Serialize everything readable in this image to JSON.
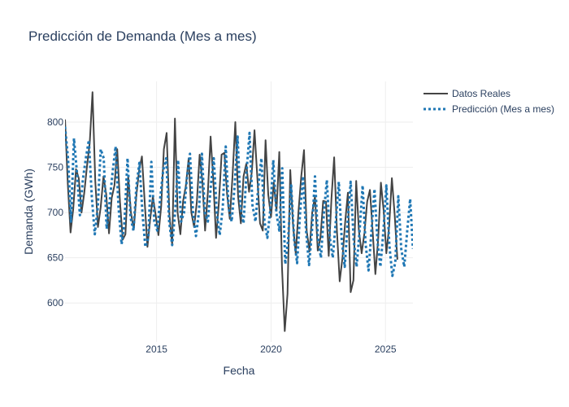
{
  "chart_data": {
    "type": "line",
    "title": "Predicción de Demanda (Mes a mes)",
    "xlabel": "Fecha",
    "ylabel": "Demanda (GWh)",
    "x_range": [
      2011.0,
      2026.2
    ],
    "ylim": [
      557,
      845
    ],
    "x_ticks": [
      {
        "value": 2015,
        "label": "2015"
      },
      {
        "value": 2020,
        "label": "2020"
      },
      {
        "value": 2025,
        "label": "2025"
      }
    ],
    "y_ticks": [
      {
        "value": 600,
        "label": "600"
      },
      {
        "value": 650,
        "label": "650"
      },
      {
        "value": 700,
        "label": "700"
      },
      {
        "value": 750,
        "label": "750"
      },
      {
        "value": 800,
        "label": "800"
      }
    ],
    "grid": true,
    "legend_position": "top-right",
    "series": [
      {
        "name": "Datos Reales",
        "color": "#444444",
        "dash": "solid",
        "points": [
          [
            2011.0,
            803
          ],
          [
            2011.12,
            732
          ],
          [
            2011.24,
            678
          ],
          [
            2011.36,
            704
          ],
          [
            2011.48,
            748
          ],
          [
            2011.6,
            738
          ],
          [
            2011.72,
            700
          ],
          [
            2011.84,
            722
          ],
          [
            2011.96,
            751
          ],
          [
            2012.08,
            777
          ],
          [
            2012.2,
            833
          ],
          [
            2012.32,
            735
          ],
          [
            2012.44,
            684
          ],
          [
            2012.56,
            706
          ],
          [
            2012.68,
            740
          ],
          [
            2012.8,
            720
          ],
          [
            2012.92,
            677
          ],
          [
            2013.04,
            716
          ],
          [
            2013.16,
            730
          ],
          [
            2013.28,
            770
          ],
          [
            2013.4,
            712
          ],
          [
            2013.52,
            670
          ],
          [
            2013.64,
            676
          ],
          [
            2013.76,
            740
          ],
          [
            2013.88,
            700
          ],
          [
            2014.0,
            681
          ],
          [
            2014.12,
            720
          ],
          [
            2014.24,
            747
          ],
          [
            2014.36,
            762
          ],
          [
            2014.48,
            712
          ],
          [
            2014.6,
            662
          ],
          [
            2014.72,
            692
          ],
          [
            2014.84,
            718
          ],
          [
            2014.96,
            697
          ],
          [
            2015.08,
            675
          ],
          [
            2015.2,
            707
          ],
          [
            2015.32,
            770
          ],
          [
            2015.44,
            788
          ],
          [
            2015.56,
            698
          ],
          [
            2015.68,
            664
          ],
          [
            2015.8,
            804
          ],
          [
            2015.92,
            700
          ],
          [
            2016.04,
            676
          ],
          [
            2016.16,
            713
          ],
          [
            2016.28,
            730
          ],
          [
            2016.4,
            760
          ],
          [
            2016.52,
            700
          ],
          [
            2016.64,
            684
          ],
          [
            2016.76,
            712
          ],
          [
            2016.88,
            764
          ],
          [
            2017.0,
            735
          ],
          [
            2017.12,
            680
          ],
          [
            2017.24,
            722
          ],
          [
            2017.36,
            784
          ],
          [
            2017.48,
            734
          ],
          [
            2017.6,
            672
          ],
          [
            2017.72,
            710
          ],
          [
            2017.84,
            764
          ],
          [
            2017.96,
            766
          ],
          [
            2018.08,
            720
          ],
          [
            2018.2,
            693
          ],
          [
            2018.32,
            741
          ],
          [
            2018.44,
            800
          ],
          [
            2018.56,
            718
          ],
          [
            2018.68,
            688
          ],
          [
            2018.8,
            740
          ],
          [
            2018.92,
            754
          ],
          [
            2019.04,
            723
          ],
          [
            2019.16,
            745
          ],
          [
            2019.28,
            791
          ],
          [
            2019.4,
            740
          ],
          [
            2019.52,
            688
          ],
          [
            2019.64,
            680
          ],
          [
            2019.76,
            780
          ],
          [
            2019.88,
            720
          ],
          [
            2020.0,
            695
          ],
          [
            2020.12,
            733
          ],
          [
            2020.24,
            702
          ],
          [
            2020.36,
            767
          ],
          [
            2020.48,
            640
          ],
          [
            2020.6,
            569
          ],
          [
            2020.72,
            610
          ],
          [
            2020.84,
            747
          ],
          [
            2020.96,
            686
          ],
          [
            2021.08,
            655
          ],
          [
            2021.2,
            701
          ],
          [
            2021.32,
            740
          ],
          [
            2021.44,
            769
          ],
          [
            2021.56,
            680
          ],
          [
            2021.68,
            657
          ],
          [
            2021.8,
            700
          ],
          [
            2021.92,
            718
          ],
          [
            2022.04,
            658
          ],
          [
            2022.16,
            672
          ],
          [
            2022.28,
            713
          ],
          [
            2022.4,
            712
          ],
          [
            2022.52,
            652
          ],
          [
            2022.64,
            716
          ],
          [
            2022.76,
            761
          ],
          [
            2022.88,
            680
          ],
          [
            2023.0,
            624
          ],
          [
            2023.12,
            650
          ],
          [
            2023.24,
            690
          ],
          [
            2023.36,
            722
          ],
          [
            2023.48,
            612
          ],
          [
            2023.6,
            625
          ],
          [
            2023.72,
            735
          ],
          [
            2023.84,
            680
          ],
          [
            2023.96,
            655
          ],
          [
            2024.08,
            677
          ],
          [
            2024.2,
            712
          ],
          [
            2024.32,
            725
          ],
          [
            2024.44,
            680
          ],
          [
            2024.56,
            632
          ],
          [
            2024.68,
            670
          ],
          [
            2024.8,
            733
          ],
          [
            2024.92,
            702
          ],
          [
            2025.04,
            655
          ],
          [
            2025.16,
            684
          ],
          [
            2025.28,
            738
          ],
          [
            2025.4,
            698
          ],
          [
            2025.52,
            648
          ]
        ]
      },
      {
        "name": "Predicción (Mes a mes)",
        "color": "#1f77b4",
        "dash": "dot",
        "points": [
          [
            2011.0,
            795
          ],
          [
            2011.13,
            760
          ],
          [
            2011.26,
            690
          ],
          [
            2011.39,
            782
          ],
          [
            2011.52,
            745
          ],
          [
            2011.65,
            697
          ],
          [
            2011.78,
            737
          ],
          [
            2011.91,
            760
          ],
          [
            2012.04,
            780
          ],
          [
            2012.17,
            718
          ],
          [
            2012.3,
            676
          ],
          [
            2012.43,
            706
          ],
          [
            2012.56,
            770
          ],
          [
            2012.69,
            760
          ],
          [
            2012.82,
            682
          ],
          [
            2012.95,
            712
          ],
          [
            2013.08,
            745
          ],
          [
            2013.21,
            773
          ],
          [
            2013.34,
            705
          ],
          [
            2013.47,
            665
          ],
          [
            2013.6,
            690
          ],
          [
            2013.73,
            760
          ],
          [
            2013.86,
            695
          ],
          [
            2013.99,
            680
          ],
          [
            2014.12,
            730
          ],
          [
            2014.25,
            755
          ],
          [
            2014.38,
            700
          ],
          [
            2014.51,
            662
          ],
          [
            2014.64,
            672
          ],
          [
            2014.77,
            756
          ],
          [
            2014.9,
            690
          ],
          [
            2015.03,
            680
          ],
          [
            2015.16,
            716
          ],
          [
            2015.29,
            747
          ],
          [
            2015.42,
            760
          ],
          [
            2015.55,
            690
          ],
          [
            2015.68,
            664
          ],
          [
            2015.81,
            700
          ],
          [
            2015.94,
            758
          ],
          [
            2016.07,
            690
          ],
          [
            2016.2,
            700
          ],
          [
            2016.33,
            740
          ],
          [
            2016.46,
            765
          ],
          [
            2016.59,
            700
          ],
          [
            2016.72,
            674
          ],
          [
            2016.85,
            700
          ],
          [
            2016.98,
            765
          ],
          [
            2017.11,
            700
          ],
          [
            2017.24,
            690
          ],
          [
            2017.37,
            730
          ],
          [
            2017.5,
            760
          ],
          [
            2017.63,
            700
          ],
          [
            2017.76,
            675
          ],
          [
            2017.89,
            705
          ],
          [
            2018.02,
            773
          ],
          [
            2018.15,
            705
          ],
          [
            2018.28,
            690
          ],
          [
            2018.41,
            730
          ],
          [
            2018.54,
            784
          ],
          [
            2018.67,
            705
          ],
          [
            2018.8,
            688
          ],
          [
            2018.93,
            745
          ],
          [
            2019.06,
            788
          ],
          [
            2019.19,
            708
          ],
          [
            2019.32,
            690
          ],
          [
            2019.45,
            730
          ],
          [
            2019.58,
            760
          ],
          [
            2019.71,
            690
          ],
          [
            2019.84,
            672
          ],
          [
            2019.97,
            704
          ],
          [
            2020.1,
            758
          ],
          [
            2020.23,
            700
          ],
          [
            2020.36,
            680
          ],
          [
            2020.49,
            749
          ],
          [
            2020.62,
            643
          ],
          [
            2020.75,
            670
          ],
          [
            2020.88,
            730
          ],
          [
            2021.01,
            670
          ],
          [
            2021.14,
            644
          ],
          [
            2021.27,
            700
          ],
          [
            2021.4,
            740
          ],
          [
            2021.53,
            680
          ],
          [
            2021.66,
            642
          ],
          [
            2021.79,
            680
          ],
          [
            2021.92,
            740
          ],
          [
            2022.05,
            672
          ],
          [
            2022.18,
            650
          ],
          [
            2022.31,
            700
          ],
          [
            2022.44,
            736
          ],
          [
            2022.57,
            672
          ],
          [
            2022.7,
            650
          ],
          [
            2022.83,
            690
          ],
          [
            2022.96,
            734
          ],
          [
            2023.09,
            670
          ],
          [
            2023.22,
            640
          ],
          [
            2023.35,
            690
          ],
          [
            2023.48,
            734
          ],
          [
            2023.61,
            670
          ],
          [
            2023.74,
            640
          ],
          [
            2023.87,
            680
          ],
          [
            2024.0,
            730
          ],
          [
            2024.13,
            666
          ],
          [
            2024.26,
            636
          ],
          [
            2024.39,
            680
          ],
          [
            2024.52,
            726
          ],
          [
            2024.65,
            668
          ],
          [
            2024.78,
            640
          ],
          [
            2024.91,
            680
          ],
          [
            2025.04,
            730
          ],
          [
            2025.17,
            664
          ],
          [
            2025.3,
            630
          ],
          [
            2025.43,
            645
          ],
          [
            2025.56,
            718
          ],
          [
            2025.69,
            660
          ],
          [
            2025.82,
            640
          ],
          [
            2025.95,
            680
          ],
          [
            2026.08,
            715
          ],
          [
            2026.2,
            660
          ]
        ]
      }
    ]
  }
}
